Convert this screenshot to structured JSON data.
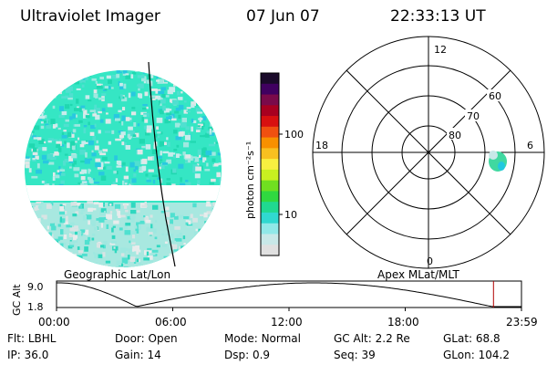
{
  "header": {
    "instrument": "Ultraviolet Imager",
    "date": "07 Jun 07",
    "time": "22:33:13 UT"
  },
  "left_panel": {
    "label": "Geographic Lat/Lon"
  },
  "right_panel": {
    "label": "Apex MLat/MLT",
    "mlt_labels": {
      "top": "12",
      "left": "18",
      "right": "6",
      "bottom": "0"
    },
    "lat_labels": [
      "60",
      "70",
      "80"
    ]
  },
  "colorbar": {
    "unit_label": "photon cm⁻²s⁻¹",
    "ticks": [
      "100",
      "10"
    ],
    "colors": [
      "#1a0a2a",
      "#400060",
      "#7a0a4a",
      "#a80020",
      "#d81010",
      "#f05010",
      "#f89000",
      "#f8c020",
      "#f8f040",
      "#c8f020",
      "#70e020",
      "#30d840",
      "#20d890",
      "#30d8d0",
      "#90e8e8",
      "#c8e8e8",
      "#e0e0e0"
    ]
  },
  "timeline": {
    "axis_title": "GC Alt",
    "y_top": "9.0",
    "y_bottom": "1.8",
    "x_ticks": [
      "00:00",
      "06:00",
      "12:00",
      "18:00",
      "23:59"
    ],
    "current_time_fraction": 0.9398
  },
  "status": [
    [
      {
        "k": "Flt:",
        "v": "LBHL"
      },
      {
        "k": "Door:",
        "v": "Open"
      },
      {
        "k": "Mode:",
        "v": "Normal"
      },
      {
        "k": "GC Alt:",
        "v": "2.2 Re"
      },
      {
        "k": "GLat:",
        "v": "68.8"
      }
    ],
    [
      {
        "k": "IP:",
        "v": "36.0"
      },
      {
        "k": "Gain:",
        "v": "14"
      },
      {
        "k": "Dsp:",
        "v": "0.9"
      },
      {
        "k": "Seq:",
        "v": "39"
      },
      {
        "k": "GLon:",
        "v": "104.2"
      }
    ]
  ]
}
